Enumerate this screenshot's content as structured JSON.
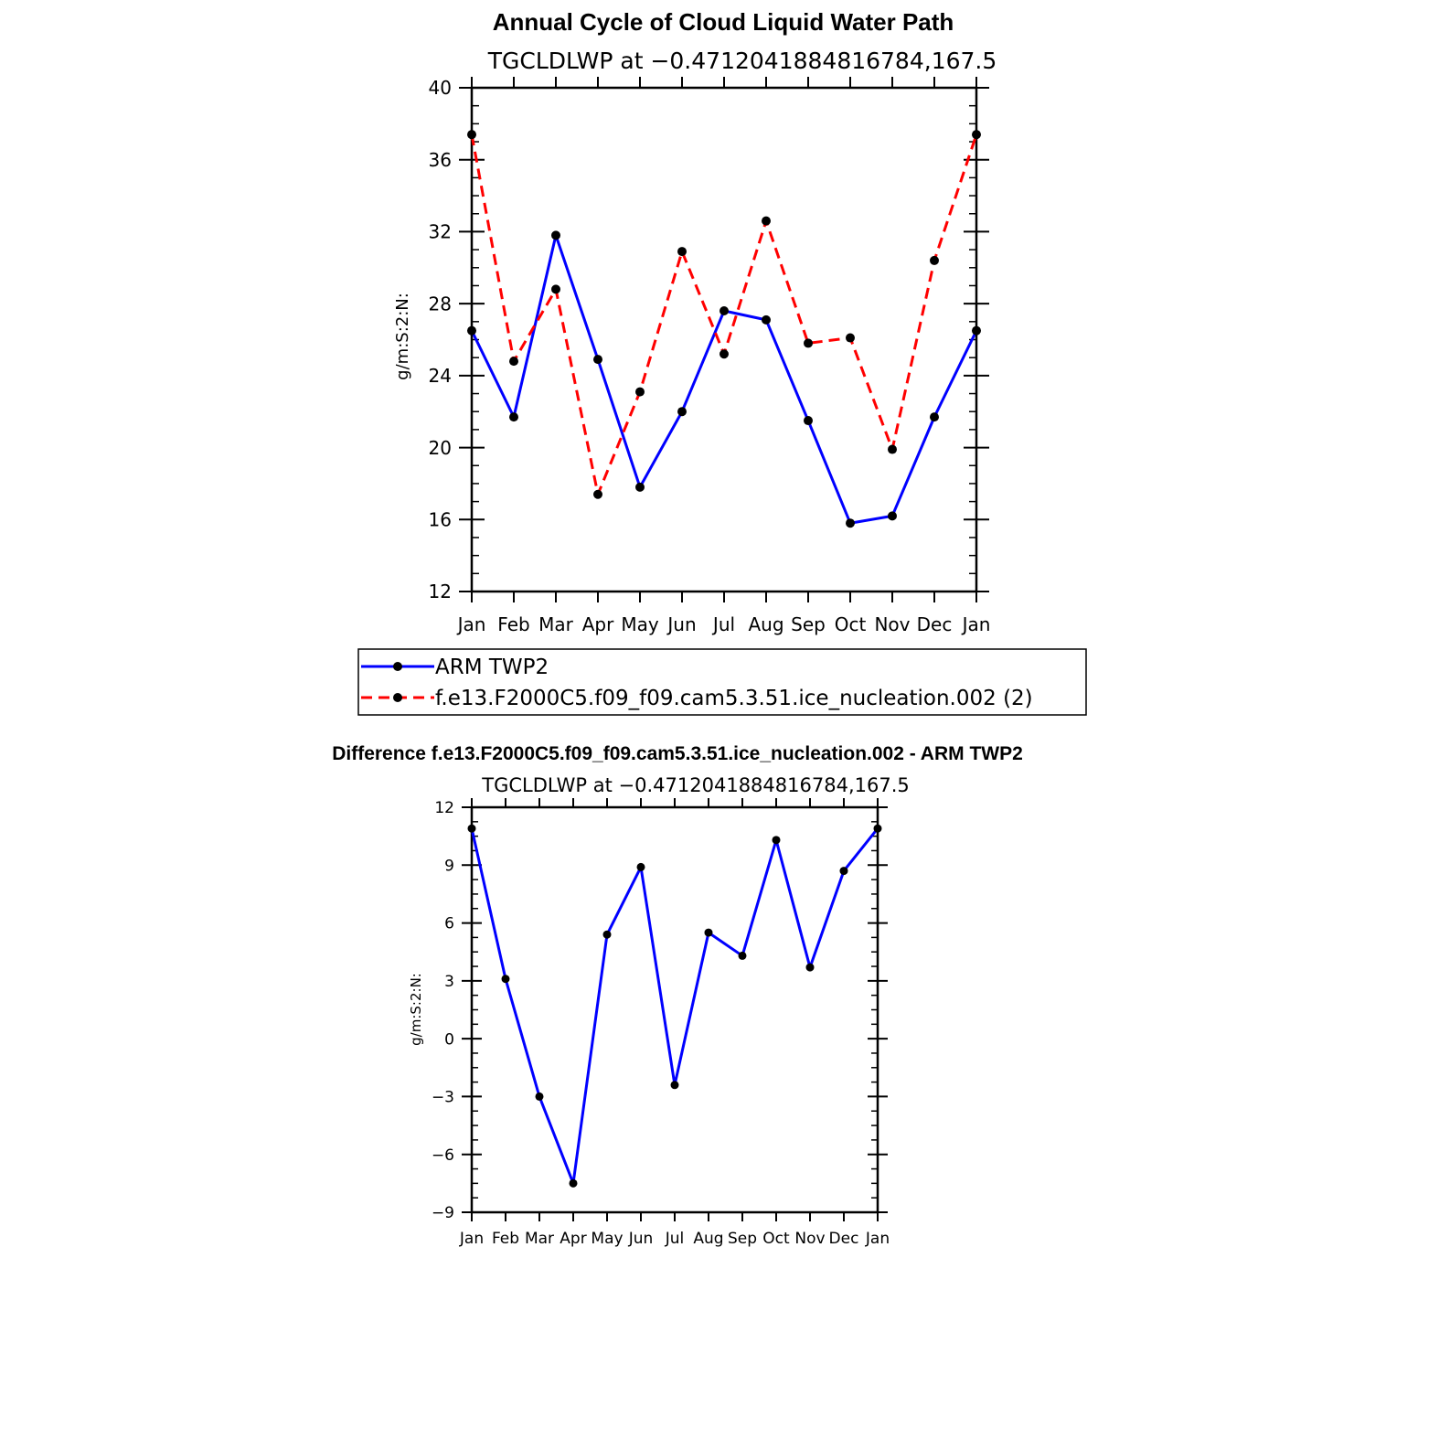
{
  "chart_data": [
    {
      "type": "line",
      "title": "Annual Cycle of Cloud Liquid Water Path",
      "subtitle": "TGCLDLWP at −0.4712041884816784,167.5",
      "xlabel": "",
      "ylabel": "g/m:S:2:N:",
      "categories": [
        "Jan",
        "Feb",
        "Mar",
        "Apr",
        "May",
        "Jun",
        "Jul",
        "Aug",
        "Sep",
        "Oct",
        "Nov",
        "Dec",
        "Jan"
      ],
      "ylim": [
        12,
        40
      ],
      "yticks": [
        "12",
        "16",
        "20",
        "24",
        "28",
        "32",
        "36",
        "40"
      ],
      "series": [
        {
          "name": "ARM TWP2",
          "color": "#0000ff",
          "dash": "solid",
          "values": [
            26.5,
            21.7,
            31.8,
            24.9,
            17.8,
            22.0,
            27.6,
            27.1,
            21.5,
            15.8,
            16.2,
            21.7,
            26.5
          ]
        },
        {
          "name": "f.e13.F2000C5.f09_f09.cam5.3.51.ice_nucleation.002 (2)",
          "color": "#ff0000",
          "dash": "dashed",
          "values": [
            37.4,
            24.8,
            28.8,
            17.4,
            23.1,
            30.9,
            25.2,
            32.6,
            25.8,
            26.1,
            19.9,
            30.4,
            37.4
          ]
        }
      ],
      "legend": [
        "ARM TWP2",
        "f.e13.F2000C5.f09_f09.cam5.3.51.ice_nucleation.002 (2)"
      ],
      "legend_position": "below"
    },
    {
      "type": "line",
      "title": "Difference f.e13.F2000C5.f09_f09.cam5.3.51.ice_nucleation.002 - ARM TWP2",
      "subtitle": "TGCLDLWP at −0.4712041884816784,167.5",
      "xlabel": "",
      "ylabel": "g/m:S:2:N:",
      "categories": [
        "Jan",
        "Feb",
        "Mar",
        "Apr",
        "May",
        "Jun",
        "Jul",
        "Aug",
        "Sep",
        "Oct",
        "Nov",
        "Dec",
        "Jan"
      ],
      "ylim": [
        -9,
        12
      ],
      "yticks": [
        "−9",
        "−6",
        "−3",
        "0",
        "3",
        "6",
        "9",
        "12"
      ],
      "series": [
        {
          "name": "Difference",
          "color": "#0000ff",
          "dash": "solid",
          "values": [
            10.9,
            3.1,
            -3.0,
            -7.5,
            5.4,
            8.9,
            -2.4,
            5.5,
            4.3,
            10.3,
            3.7,
            8.7,
            10.9
          ]
        }
      ]
    }
  ]
}
